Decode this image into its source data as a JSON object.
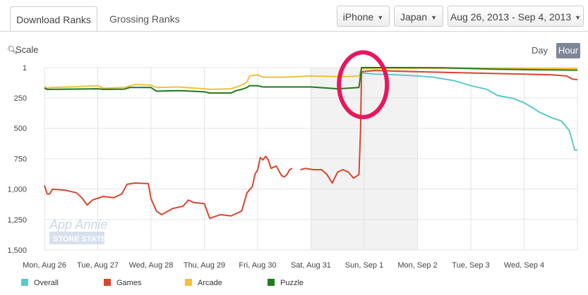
{
  "tabs": {
    "download": "Download Ranks",
    "grossing": "Grossing Ranks"
  },
  "filters": {
    "device": "iPhone",
    "country": "Japan",
    "date_range": "Aug 26, 2013 - Sep 4, 2013"
  },
  "controls": {
    "scale": "Scale",
    "day": "Day",
    "hour": "Hour"
  },
  "watermark": {
    "line1": "App Annie",
    "line2": "STORE STATS"
  },
  "colors": {
    "overall": "#5bc8d0",
    "games": "#d9452f",
    "arcade": "#f2c03a",
    "puzzle": "#1e7a1e",
    "annotation": "#e8175d",
    "weekend_band": "#f2f2f2"
  },
  "chart_data": {
    "type": "line",
    "title": "",
    "xlabel": "",
    "ylabel": "",
    "y_inverted": true,
    "ylim": [
      1,
      1500
    ],
    "y_ticks": [
      1,
      250,
      500,
      750,
      1000,
      1250,
      1500
    ],
    "y_tick_labels": [
      "1",
      "250",
      "500",
      "750",
      "1,000",
      "1,250",
      "1,500"
    ],
    "x_range": [
      0,
      10
    ],
    "x_ticks": [
      0,
      1,
      2,
      3,
      4,
      5,
      6,
      7,
      8,
      9
    ],
    "x_tick_labels": [
      "Mon, Aug 26",
      "Tue, Aug 27",
      "Wed, Aug 28",
      "Thu, Aug 29",
      "Fri, Aug 30",
      "Sat, Aug 31",
      "Sun, Sep 1",
      "Mon, Sep 2",
      "Tue, Sep 3",
      "Wed, Sep 4"
    ],
    "shaded_ranges": [
      [
        5,
        7
      ]
    ],
    "annotation": {
      "type": "circle",
      "x": 5.95,
      "y": 90
    },
    "legend_position": "bottom",
    "grid": true,
    "series": [
      {
        "name": "Overall",
        "color": "#5bc8d0",
        "points": [
          [
            5.95,
            45
          ],
          [
            6.2,
            55
          ],
          [
            6.6,
            60
          ],
          [
            7.0,
            70
          ],
          [
            7.3,
            80
          ],
          [
            7.7,
            110
          ],
          [
            8.0,
            150
          ],
          [
            8.3,
            180
          ],
          [
            8.5,
            230
          ],
          [
            8.8,
            255
          ],
          [
            9.0,
            290
          ],
          [
            9.3,
            370
          ],
          [
            9.5,
            410
          ],
          [
            9.7,
            440
          ],
          [
            9.85,
            520
          ],
          [
            9.95,
            680
          ],
          [
            10.0,
            680
          ]
        ]
      },
      {
        "name": "Games",
        "color": "#d9452f",
        "points": [
          [
            0,
            970
          ],
          [
            0.05,
            1040
          ],
          [
            0.1,
            1040
          ],
          [
            0.15,
            1000
          ],
          [
            0.4,
            1010
          ],
          [
            0.6,
            1030
          ],
          [
            0.7,
            1070
          ],
          [
            0.8,
            1130
          ],
          [
            0.9,
            1090
          ],
          [
            1.1,
            1060
          ],
          [
            1.3,
            1070
          ],
          [
            1.45,
            1040
          ],
          [
            1.55,
            960
          ],
          [
            1.7,
            950
          ],
          [
            1.95,
            955
          ],
          [
            2.0,
            1080
          ],
          [
            2.1,
            1180
          ],
          [
            2.2,
            1210
          ],
          [
            2.4,
            1160
          ],
          [
            2.6,
            1140
          ],
          [
            2.7,
            1090
          ],
          [
            2.8,
            1110
          ],
          [
            3.0,
            1120
          ],
          [
            3.1,
            1240
          ],
          [
            3.3,
            1210
          ],
          [
            3.5,
            1220
          ],
          [
            3.7,
            1180
          ],
          [
            3.8,
            1030
          ],
          [
            3.9,
            980
          ],
          [
            3.95,
            880
          ],
          [
            4.0,
            840
          ],
          [
            4.05,
            740
          ],
          [
            4.1,
            760
          ],
          [
            4.15,
            730
          ],
          [
            4.2,
            760
          ],
          [
            4.25,
            830
          ],
          [
            4.35,
            810
          ],
          [
            4.4,
            850
          ],
          [
            4.45,
            890
          ],
          [
            4.5,
            900
          ],
          [
            4.55,
            880
          ],
          [
            4.6,
            840
          ],
          [
            4.65,
            830
          ],
          [
            4.75,
            null
          ],
          [
            4.8,
            840
          ],
          [
            4.9,
            830
          ],
          [
            5.05,
            840
          ],
          [
            5.2,
            840
          ],
          [
            5.3,
            880
          ],
          [
            5.4,
            950
          ],
          [
            5.5,
            860
          ],
          [
            5.6,
            840
          ],
          [
            5.7,
            860
          ],
          [
            5.8,
            910
          ],
          [
            5.9,
            880
          ],
          [
            5.93,
            530
          ],
          [
            5.95,
            35
          ],
          [
            6.2,
            25
          ],
          [
            6.6,
            30
          ],
          [
            7.0,
            35
          ],
          [
            7.5,
            40
          ],
          [
            8.0,
            45
          ],
          [
            8.5,
            50
          ],
          [
            9.0,
            55
          ],
          [
            9.5,
            60
          ],
          [
            9.8,
            70
          ],
          [
            9.9,
            95
          ],
          [
            10.0,
            100
          ]
        ]
      },
      {
        "name": "Arcade",
        "color": "#f2c03a",
        "points": [
          [
            0,
            155
          ],
          [
            0.05,
            170
          ],
          [
            0.1,
            165
          ],
          [
            0.5,
            160
          ],
          [
            1.0,
            150
          ],
          [
            1.1,
            170
          ],
          [
            1.5,
            165
          ],
          [
            1.7,
            140
          ],
          [
            2.0,
            145
          ],
          [
            2.1,
            165
          ],
          [
            2.5,
            160
          ],
          [
            3.0,
            175
          ],
          [
            3.1,
            180
          ],
          [
            3.5,
            175
          ],
          [
            3.6,
            160
          ],
          [
            3.7,
            145
          ],
          [
            3.8,
            120
          ],
          [
            3.85,
            70
          ],
          [
            4.0,
            60
          ],
          [
            4.1,
            80
          ],
          [
            4.5,
            80
          ],
          [
            5.0,
            70
          ],
          [
            5.5,
            75
          ],
          [
            5.7,
            75
          ],
          [
            5.9,
            70
          ],
          [
            5.95,
            10
          ],
          [
            6.5,
            6
          ],
          [
            7.5,
            6
          ],
          [
            8.5,
            6
          ],
          [
            9.0,
            6
          ],
          [
            9.5,
            8
          ],
          [
            10.0,
            8
          ]
        ]
      },
      {
        "name": "Puzzle",
        "color": "#1e7a1e",
        "points": [
          [
            0,
            170
          ],
          [
            0.05,
            180
          ],
          [
            0.1,
            180
          ],
          [
            0.5,
            178
          ],
          [
            1.0,
            175
          ],
          [
            1.1,
            180
          ],
          [
            1.5,
            178
          ],
          [
            1.6,
            165
          ],
          [
            2.0,
            165
          ],
          [
            2.1,
            195
          ],
          [
            2.5,
            190
          ],
          [
            3.0,
            200
          ],
          [
            3.1,
            210
          ],
          [
            3.5,
            210
          ],
          [
            3.6,
            190
          ],
          [
            3.7,
            180
          ],
          [
            3.8,
            165
          ],
          [
            3.85,
            150
          ],
          [
            4.0,
            150
          ],
          [
            4.1,
            160
          ],
          [
            4.5,
            160
          ],
          [
            5.0,
            160
          ],
          [
            5.5,
            175
          ],
          [
            5.7,
            170
          ],
          [
            5.9,
            165
          ],
          [
            5.95,
            1
          ],
          [
            6.5,
            1
          ],
          [
            7.5,
            3
          ],
          [
            8.5,
            15
          ],
          [
            9.5,
            20
          ],
          [
            10.0,
            22
          ]
        ]
      }
    ]
  }
}
